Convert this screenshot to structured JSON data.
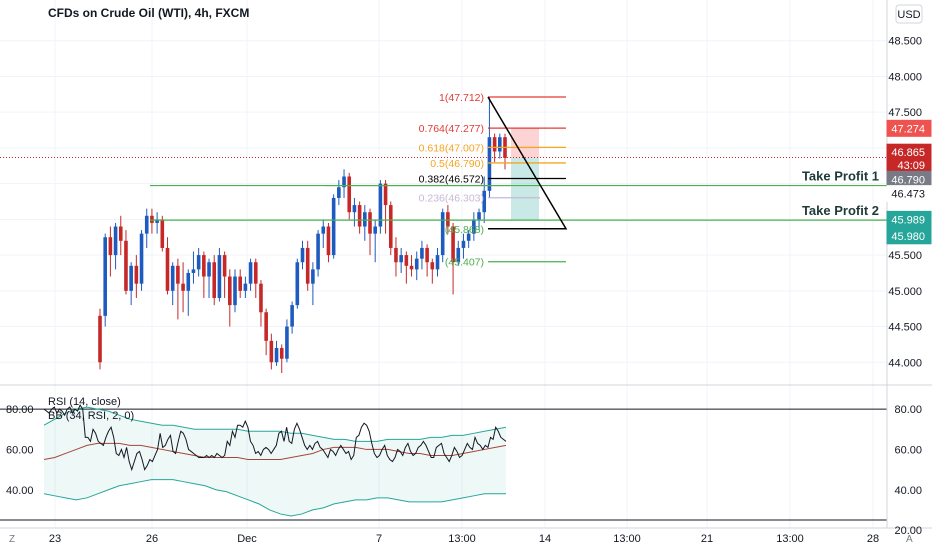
{
  "chart_data": [
    {
      "type": "candlestick",
      "title": "CFDs on Crude Oil (WTI), 4h, FXCM",
      "currency": "USD",
      "ylim": [
        43.85,
        48.65
      ],
      "y_ticks": [
        "48.500",
        "48.000",
        "47.500",
        "47.000",
        "46.500",
        "46.000",
        "45.500",
        "45.000",
        "44.500",
        "44.000"
      ],
      "x_ticks": [
        "23",
        "26",
        "Dec",
        "7",
        "13:00",
        "14",
        "13:00",
        "21",
        "13:00",
        "28"
      ],
      "candles": [
        [
          44.65,
          44.0,
          44.75,
          43.9
        ],
        [
          44.65,
          45.75,
          45.8,
          44.5
        ],
        [
          45.75,
          45.5,
          45.9,
          45.2
        ],
        [
          45.5,
          45.9,
          45.95,
          45.3
        ],
        [
          45.9,
          45.7,
          46.05,
          45.5
        ],
        [
          45.7,
          45.0,
          45.85,
          44.95
        ],
        [
          45.0,
          45.35,
          45.4,
          44.8
        ],
        [
          45.35,
          45.1,
          45.5,
          44.9
        ],
        [
          45.1,
          45.8,
          45.85,
          45.0
        ],
        [
          45.8,
          46.05,
          46.15,
          45.6
        ],
        [
          46.05,
          45.95,
          46.15,
          45.8
        ],
        [
          45.95,
          46.0,
          46.1,
          45.8
        ],
        [
          46.0,
          45.6,
          46.05,
          45.55
        ],
        [
          45.6,
          45.0,
          45.75,
          44.95
        ],
        [
          45.0,
          45.35,
          45.4,
          44.8
        ],
        [
          45.35,
          45.1,
          45.45,
          44.6
        ],
        [
          45.1,
          45.0,
          45.4,
          44.7
        ],
        [
          45.0,
          45.25,
          45.3,
          44.65
        ],
        [
          45.25,
          45.3,
          45.55,
          45.1
        ],
        [
          45.3,
          45.5,
          45.6,
          45.2
        ],
        [
          45.5,
          45.2,
          45.55,
          44.9
        ],
        [
          45.2,
          45.4,
          45.45,
          44.9
        ],
        [
          45.4,
          44.9,
          45.5,
          44.8
        ],
        [
          44.9,
          45.5,
          45.6,
          44.85
        ],
        [
          45.5,
          45.2,
          45.55,
          44.9
        ],
        [
          45.2,
          44.8,
          45.3,
          44.5
        ],
        [
          44.8,
          45.2,
          45.3,
          44.7
        ],
        [
          45.2,
          45.0,
          45.3,
          44.9
        ],
        [
          45.0,
          45.1,
          45.2,
          44.9
        ],
        [
          45.1,
          45.4,
          45.45,
          45.0
        ],
        [
          45.4,
          45.1,
          45.45,
          44.9
        ],
        [
          45.1,
          44.7,
          45.15,
          44.5
        ],
        [
          44.7,
          44.3,
          44.75,
          44.1
        ],
        [
          44.3,
          44.0,
          44.4,
          43.9
        ],
        [
          44.0,
          44.2,
          44.3,
          43.95
        ],
        [
          44.2,
          44.05,
          44.25,
          43.85
        ],
        [
          44.05,
          44.5,
          44.6,
          44.0
        ],
        [
          44.5,
          44.8,
          44.85,
          44.4
        ],
        [
          44.8,
          45.4,
          45.45,
          44.75
        ],
        [
          45.4,
          45.6,
          45.7,
          45.3
        ],
        [
          45.6,
          45.1,
          45.7,
          45.0
        ],
        [
          45.1,
          45.3,
          45.4,
          44.8
        ],
        [
          45.3,
          45.8,
          45.85,
          45.2
        ],
        [
          45.8,
          45.9,
          46.0,
          45.6
        ],
        [
          45.9,
          45.5,
          45.95,
          45.4
        ],
        [
          45.5,
          46.3,
          46.35,
          45.45
        ],
        [
          46.3,
          46.45,
          46.55,
          46.2
        ],
        [
          46.45,
          46.6,
          46.7,
          46.3
        ],
        [
          46.6,
          46.1,
          46.65,
          46.0
        ],
        [
          46.1,
          46.2,
          46.3,
          45.9
        ],
        [
          46.2,
          45.9,
          46.25,
          45.8
        ],
        [
          45.9,
          46.1,
          46.2,
          45.7
        ],
        [
          46.1,
          45.8,
          46.15,
          45.5
        ],
        [
          45.8,
          45.9,
          46.0,
          45.4
        ],
        [
          45.9,
          46.5,
          46.55,
          45.8
        ],
        [
          46.5,
          46.2,
          46.55,
          45.8
        ],
        [
          46.2,
          45.6,
          46.25,
          45.5
        ],
        [
          45.6,
          45.4,
          45.75,
          45.2
        ],
        [
          45.4,
          45.5,
          45.6,
          45.25
        ],
        [
          45.5,
          45.35,
          45.55,
          45.1
        ],
        [
          45.35,
          45.3,
          45.5,
          45.2
        ],
        [
          45.3,
          45.45,
          45.55,
          45.15
        ],
        [
          45.45,
          45.6,
          45.7,
          45.3
        ],
        [
          45.6,
          45.4,
          45.65,
          45.2
        ],
        [
          45.4,
          45.3,
          45.45,
          45.1
        ],
        [
          45.3,
          45.5,
          45.6,
          45.2
        ],
        [
          45.5,
          46.1,
          46.15,
          45.4
        ],
        [
          46.1,
          45.9,
          46.2,
          45.8
        ],
        [
          45.9,
          45.4,
          45.95,
          44.95
        ],
        [
          45.4,
          45.6,
          45.7,
          45.35
        ],
        [
          45.6,
          45.7,
          45.8,
          45.45
        ],
        [
          45.7,
          45.8,
          45.85,
          45.6
        ],
        [
          45.8,
          46.0,
          46.1,
          45.7
        ],
        [
          46.0,
          46.1,
          46.15,
          45.85
        ],
        [
          46.1,
          46.4,
          46.6,
          45.95
        ],
        [
          46.4,
          47.15,
          47.71,
          46.3
        ],
        [
          47.15,
          46.95,
          47.2,
          46.8
        ],
        [
          46.95,
          47.15,
          47.2,
          46.85
        ],
        [
          47.15,
          46.86,
          47.2,
          46.7
        ]
      ],
      "fib_levels": [
        {
          "ratio": "1",
          "price": 47.712,
          "label": "1(47.712)",
          "color": "#e53935"
        },
        {
          "ratio": "0.764",
          "price": 47.277,
          "label": "0.764(47.277)",
          "color": "#e53935"
        },
        {
          "ratio": "0.618",
          "price": 47.007,
          "label": "0.618(47.007)",
          "color": "#f5a623"
        },
        {
          "ratio": "0.5",
          "price": 46.79,
          "label": "0.5(46.790)",
          "color": "#f5a623"
        },
        {
          "ratio": "0.382",
          "price": 46.572,
          "label": "0.382(46.572)",
          "color": "#000000"
        },
        {
          "ratio": "0.236",
          "price": 46.303,
          "label": "0.236(46.303)",
          "color": "#c8b8d8"
        },
        {
          "ratio": "0",
          "price": 45.868,
          "label": "(45.868)",
          "color": "#4caf50"
        },
        {
          "ratio": "",
          "price": 45.407,
          "label": "(45.407)",
          "color": "#4caf50"
        }
      ],
      "take_profit": [
        {
          "label": "Take Profit 1",
          "price": 46.473
        },
        {
          "label": "Take Profit 2",
          "price": 45.989
        }
      ],
      "price_labels": [
        {
          "text": "47.274",
          "price": 47.274,
          "bg": "#ef5350",
          "fg": "#ffffff"
        },
        {
          "text": "46.865",
          "price": 46.94,
          "bg": "#c62828",
          "fg": "#ffffff"
        },
        {
          "text": "43:09",
          "price": 46.76,
          "bg": "#c62828",
          "fg": "#ffffff"
        },
        {
          "text": "46.790",
          "price": 46.56,
          "bg": "#787b86",
          "fg": "#ffffff"
        },
        {
          "text": "46.473",
          "price": 46.36,
          "bg": "#ffffff",
          "fg": "#131722"
        },
        {
          "text": "45.989",
          "price": 46.0,
          "bg": "#26a69a",
          "fg": "#ffffff"
        },
        {
          "text": "45.980",
          "price": 45.77,
          "bg": "#26a69a",
          "fg": "#ffffff"
        }
      ],
      "last_price": 46.865,
      "colors": {
        "up": "#26a69a",
        "down": "#ef5350",
        "candle_up": "#1e5bbf",
        "candle_down": "#c62828",
        "tp_line": "#4caf50"
      }
    },
    {
      "type": "line",
      "title": "RSI (14, close)",
      "subtitle": "BB (34, RSI, 2, 0)",
      "ylim": [
        25,
        87
      ],
      "left_ticks": [
        "80.00",
        "60.00",
        "40.00"
      ],
      "right_ticks": [
        "80.00",
        "60.00",
        "40.00",
        "20.00"
      ],
      "levels": [
        80,
        25
      ],
      "rsi": [
        80,
        79,
        78,
        80,
        81,
        78,
        80,
        79,
        77,
        80,
        81,
        78,
        80,
        79,
        82,
        80,
        66,
        66,
        64,
        70,
        68,
        64,
        63,
        62,
        66,
        69,
        71,
        66,
        58,
        57,
        60,
        56,
        61,
        54,
        50,
        54,
        58,
        59,
        55,
        50,
        52,
        55,
        54,
        57,
        60,
        68,
        61,
        62,
        65,
        67,
        59,
        58,
        64,
        69,
        68,
        65,
        60,
        59,
        58,
        57,
        56,
        56,
        56,
        57,
        56,
        57,
        56,
        58,
        57,
        56,
        57,
        64,
        62,
        69,
        66,
        72,
        72,
        71,
        74,
        71,
        64,
        62,
        58,
        59,
        57,
        60,
        61,
        60,
        58,
        60,
        62,
        68,
        69,
        64,
        71,
        64,
        63,
        70,
        73,
        70,
        66,
        62,
        60,
        62,
        60,
        63,
        64,
        61,
        60,
        58,
        56,
        60,
        59,
        57,
        60,
        62,
        60,
        58,
        59,
        55,
        57,
        66,
        67,
        71,
        73,
        72,
        69,
        63,
        58,
        56,
        57,
        60,
        62,
        57,
        55,
        54,
        56,
        60,
        59,
        57,
        61,
        63,
        59,
        57,
        58,
        61,
        62,
        64,
        62,
        59,
        56,
        56,
        61,
        62,
        63,
        58,
        56,
        54,
        57,
        61,
        59,
        56,
        57,
        60,
        63,
        61,
        60,
        66,
        63,
        62,
        60,
        62,
        61,
        66,
        65,
        71,
        69,
        66,
        65,
        64
      ],
      "bb_upper": [
        72,
        75,
        78,
        80,
        81,
        80,
        79,
        77,
        75,
        74,
        73,
        72,
        72,
        71,
        70,
        70,
        70,
        70,
        70,
        69,
        69,
        69,
        69,
        68,
        68,
        67,
        66,
        65,
        65,
        64,
        64,
        64,
        65,
        65,
        65,
        65,
        66,
        66,
        67,
        67,
        68,
        69,
        70,
        71
      ],
      "bb_mid": [
        55,
        56,
        58,
        60,
        62,
        63,
        63,
        63,
        62,
        62,
        61,
        60,
        59,
        58,
        57,
        56,
        56,
        56,
        56,
        55,
        55,
        55,
        55,
        56,
        57,
        58,
        60,
        61,
        61,
        61,
        60,
        60,
        60,
        59,
        58,
        58,
        57,
        57,
        57,
        58,
        59,
        60,
        61,
        62
      ],
      "bb_lower": [
        38,
        37,
        36,
        35,
        36,
        38,
        40,
        42,
        43,
        44,
        45,
        45,
        45,
        44,
        43,
        42,
        40,
        39,
        37,
        35,
        33,
        30,
        28,
        27,
        28,
        30,
        31,
        33,
        34,
        35,
        35,
        36,
        36,
        35,
        34,
        34,
        34,
        34,
        35,
        36,
        37,
        38,
        38,
        38
      ]
    }
  ],
  "xaxis_icons": {
    "left": "Z",
    "right": "A"
  },
  "pane_buttons": {
    "top": "USD"
  }
}
